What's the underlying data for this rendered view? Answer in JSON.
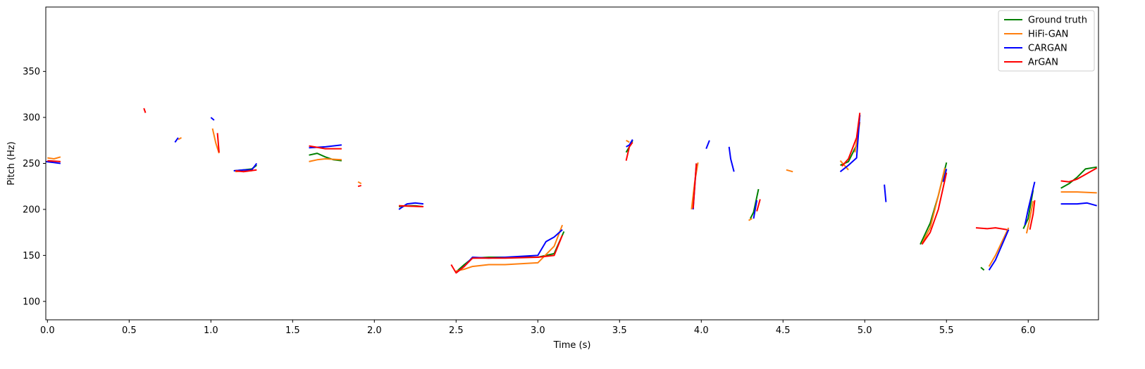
{
  "chart_data": {
    "type": "line",
    "title": "",
    "xlabel": "Time (s)",
    "ylabel": "Pitch (Hz)",
    "xlim": [
      -0.01,
      6.43
    ],
    "ylim": [
      80,
      420
    ],
    "xticks": [
      0.0,
      0.5,
      1.0,
      1.5,
      2.0,
      2.5,
      3.0,
      3.5,
      4.0,
      4.5,
      5.0,
      5.5,
      6.0
    ],
    "xtick_labels": [
      "0.0",
      "0.5",
      "1.0",
      "1.5",
      "2.0",
      "2.5",
      "3.0",
      "3.5",
      "4.0",
      "4.5",
      "5.0",
      "5.5",
      "6.0"
    ],
    "yticks": [
      100,
      150,
      200,
      250,
      300,
      350
    ],
    "ytick_labels": [
      "100",
      "150",
      "200",
      "250",
      "300",
      "350"
    ],
    "grid": false,
    "legend_position": "top-right",
    "series": [
      {
        "name": "Ground truth",
        "color": "#008000",
        "segments": [
          [
            [
              1.14,
              242
            ],
            [
              1.2,
              243
            ],
            [
              1.25,
              244
            ],
            [
              1.28,
              248
            ]
          ],
          [
            [
              1.6,
              259
            ],
            [
              1.65,
              261
            ],
            [
              1.7,
              257
            ],
            [
              1.75,
              254
            ],
            [
              1.8,
              253
            ]
          ],
          [
            [
              2.15,
              203
            ],
            [
              2.2,
              204
            ],
            [
              2.25,
              204
            ],
            [
              2.3,
              203
            ]
          ],
          [
            [
              2.5,
              132
            ],
            [
              2.55,
              140
            ],
            [
              2.6,
              147
            ],
            [
              2.7,
              148
            ],
            [
              2.8,
              148
            ],
            [
              3.0,
              148
            ],
            [
              3.1,
              152
            ],
            [
              3.16,
              176
            ]
          ],
          [
            [
              3.54,
              262
            ],
            [
              3.56,
              268
            ],
            [
              3.58,
              275
            ]
          ],
          [
            [
              4.3,
              190
            ],
            [
              4.32,
              197
            ],
            [
              4.35,
              222
            ]
          ],
          [
            [
              4.85,
              248
            ],
            [
              4.9,
              252
            ],
            [
              4.95,
              270
            ],
            [
              4.97,
              302
            ]
          ],
          [
            [
              5.34,
              162
            ],
            [
              5.4,
              185
            ],
            [
              5.45,
              215
            ],
            [
              5.5,
              251
            ]
          ],
          [
            [
              5.71,
              137
            ],
            [
              5.73,
              134
            ]
          ],
          [
            [
              5.97,
              179
            ],
            [
              6.0,
              190
            ],
            [
              6.03,
              221
            ]
          ],
          [
            [
              6.2,
              223
            ],
            [
              6.25,
              228
            ],
            [
              6.3,
              235
            ],
            [
              6.35,
              244
            ],
            [
              6.42,
              246
            ]
          ]
        ]
      },
      {
        "name": "HiFi-GAN",
        "color": "#ff7f0e",
        "segments": [
          [
            [
              0.0,
              256
            ],
            [
              0.04,
              255
            ],
            [
              0.08,
              257
            ]
          ],
          [
            [
              0.8,
              276
            ],
            [
              0.82,
              278
            ]
          ],
          [
            [
              1.01,
              288
            ],
            [
              1.03,
              272
            ],
            [
              1.05,
              261
            ]
          ],
          [
            [
              1.15,
              241
            ],
            [
              1.2,
              242
            ],
            [
              1.25,
              242
            ]
          ],
          [
            [
              1.6,
              252
            ],
            [
              1.65,
              254
            ],
            [
              1.7,
              255
            ],
            [
              1.8,
              254
            ]
          ],
          [
            [
              1.9,
              230
            ],
            [
              1.92,
              228
            ]
          ],
          [
            [
              2.15,
              204
            ],
            [
              2.3,
              203
            ]
          ],
          [
            [
              2.5,
              133
            ],
            [
              2.55,
              135
            ],
            [
              2.6,
              138
            ],
            [
              2.7,
              140
            ],
            [
              2.8,
              140
            ],
            [
              3.0,
              142
            ],
            [
              3.1,
              160
            ],
            [
              3.15,
              183
            ]
          ],
          [
            [
              3.54,
              275
            ],
            [
              3.56,
              273
            ]
          ],
          [
            [
              3.94,
              200
            ],
            [
              3.96,
              230
            ],
            [
              3.98,
              251
            ]
          ],
          [
            [
              4.29,
              188
            ],
            [
              4.31,
              190
            ]
          ],
          [
            [
              4.52,
              243
            ],
            [
              4.56,
              241
            ]
          ],
          [
            [
              4.85,
              253
            ],
            [
              4.9,
              243
            ]
          ],
          [
            [
              4.94,
              262
            ],
            [
              4.97,
              295
            ]
          ],
          [
            [
              5.35,
              163
            ],
            [
              5.4,
              180
            ],
            [
              5.45,
              215
            ],
            [
              5.49,
              245
            ]
          ],
          [
            [
              5.76,
              138
            ],
            [
              5.8,
              150
            ],
            [
              5.88,
              180
            ]
          ],
          [
            [
              5.99,
              174
            ],
            [
              6.01,
              190
            ],
            [
              6.03,
              209
            ]
          ],
          [
            [
              6.2,
              219
            ],
            [
              6.3,
              219
            ],
            [
              6.42,
              218
            ]
          ]
        ]
      },
      {
        "name": "CARGAN",
        "color": "#0000ff",
        "segments": [
          [
            [
              -0.01,
              252
            ],
            [
              0.04,
              251
            ],
            [
              0.08,
              250
            ]
          ],
          [
            [
              0.78,
              273
            ],
            [
              0.8,
              278
            ]
          ],
          [
            [
              1.0,
              300
            ],
            [
              1.02,
              297
            ]
          ],
          [
            [
              1.14,
              242
            ],
            [
              1.2,
              243
            ],
            [
              1.25,
              243
            ],
            [
              1.28,
              250
            ]
          ],
          [
            [
              1.6,
              267
            ],
            [
              1.7,
              268
            ],
            [
              1.8,
              270
            ]
          ],
          [
            [
              2.15,
              200
            ],
            [
              2.2,
              206
            ],
            [
              2.25,
              207
            ],
            [
              2.3,
              206
            ]
          ],
          [
            [
              2.5,
              131
            ],
            [
              2.55,
              138
            ],
            [
              2.6,
              148
            ],
            [
              2.7,
              147
            ],
            [
              2.8,
              148
            ],
            [
              3.0,
              150
            ],
            [
              3.05,
              165
            ],
            [
              3.1,
              170
            ],
            [
              3.15,
              178
            ]
          ],
          [
            [
              3.54,
              268
            ],
            [
              3.56,
              270
            ],
            [
              3.58,
              276
            ]
          ],
          [
            [
              3.95,
              200
            ],
            [
              3.97,
              250
            ]
          ],
          [
            [
              4.03,
              266
            ],
            [
              4.05,
              275
            ]
          ],
          [
            [
              4.17,
              268
            ],
            [
              4.18,
              255
            ],
            [
              4.2,
              241
            ]
          ],
          [
            [
              4.32,
              190
            ],
            [
              4.34,
              210
            ]
          ],
          [
            [
              4.85,
              241
            ],
            [
              4.9,
              248
            ],
            [
              4.95,
              256
            ],
            [
              4.97,
              303
            ]
          ],
          [
            [
              5.12,
              227
            ],
            [
              5.13,
              208
            ]
          ],
          [
            [
              5.48,
              230
            ],
            [
              5.5,
              244
            ]
          ],
          [
            [
              5.76,
              134
            ],
            [
              5.8,
              145
            ],
            [
              5.88,
              178
            ]
          ],
          [
            [
              5.98,
              183
            ],
            [
              6.0,
              200
            ],
            [
              6.04,
              230
            ]
          ],
          [
            [
              6.2,
              206
            ],
            [
              6.3,
              206
            ],
            [
              6.36,
              207
            ],
            [
              6.42,
              204
            ]
          ]
        ]
      },
      {
        "name": "ArGAN",
        "color": "#ff0000",
        "segments": [
          [
            [
              0.0,
              253
            ],
            [
              0.08,
              252
            ]
          ],
          [
            [
              0.59,
              310
            ],
            [
              0.6,
              305
            ]
          ],
          [
            [
              1.04,
              283
            ],
            [
              1.05,
              262
            ]
          ],
          [
            [
              1.15,
              242
            ],
            [
              1.2,
              241
            ],
            [
              1.28,
              243
            ]
          ],
          [
            [
              1.6,
              269
            ],
            [
              1.7,
              266
            ],
            [
              1.8,
              266
            ]
          ],
          [
            [
              1.9,
              225
            ],
            [
              1.92,
              226
            ]
          ],
          [
            [
              2.15,
              204
            ],
            [
              2.3,
              203
            ]
          ],
          [
            [
              2.47,
              140
            ],
            [
              2.5,
              131
            ],
            [
              2.55,
              138
            ],
            [
              2.6,
              147
            ],
            [
              2.7,
              147
            ],
            [
              2.8,
              147
            ],
            [
              3.0,
              148
            ],
            [
              3.1,
              150
            ],
            [
              3.15,
              172
            ]
          ],
          [
            [
              3.54,
              253
            ],
            [
              3.56,
              268
            ],
            [
              3.58,
              273
            ]
          ],
          [
            [
              3.95,
              201
            ],
            [
              3.97,
              250
            ]
          ],
          [
            [
              4.34,
              198
            ],
            [
              4.36,
              211
            ]
          ],
          [
            [
              4.86,
              247
            ],
            [
              4.9,
              255
            ],
            [
              4.95,
              278
            ],
            [
              4.97,
              305
            ]
          ],
          [
            [
              5.35,
              162
            ],
            [
              5.4,
              175
            ],
            [
              5.45,
              200
            ],
            [
              5.5,
              240
            ]
          ],
          [
            [
              5.68,
              180
            ],
            [
              5.75,
              179
            ],
            [
              5.8,
              180
            ],
            [
              5.87,
              178
            ]
          ],
          [
            [
              6.01,
              178
            ],
            [
              6.03,
              195
            ],
            [
              6.04,
              210
            ]
          ],
          [
            [
              6.2,
              231
            ],
            [
              6.25,
              230
            ],
            [
              6.3,
              233
            ],
            [
              6.35,
              238
            ],
            [
              6.42,
              245
            ]
          ]
        ]
      }
    ]
  }
}
